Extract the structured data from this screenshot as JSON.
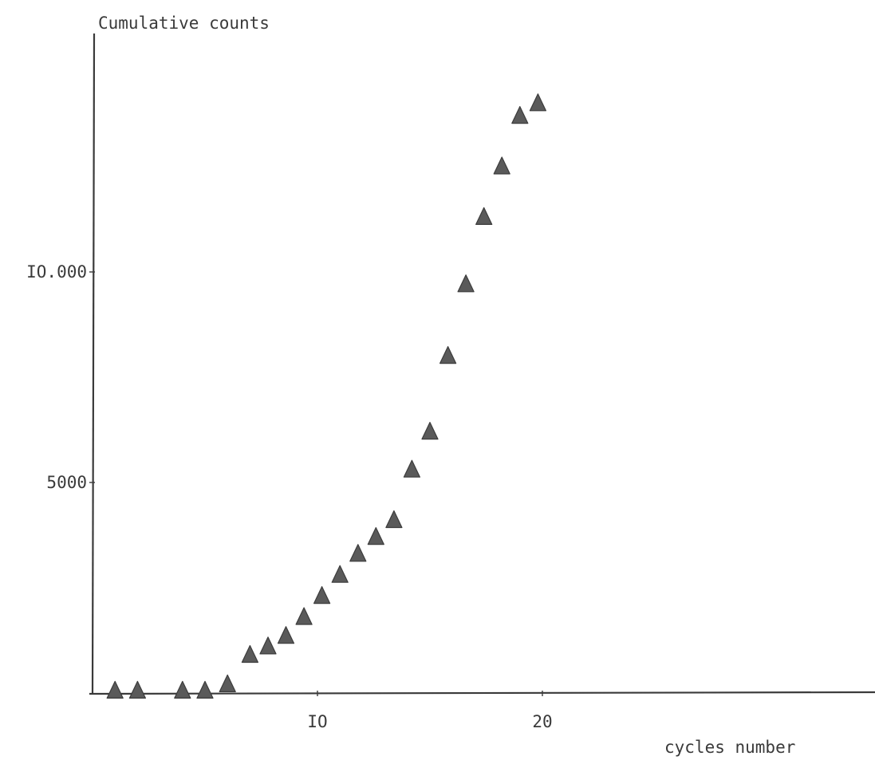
{
  "chart_data": {
    "type": "scatter",
    "title": "",
    "ylabel": "Cumulative counts",
    "xlabel": "cycles number",
    "xlim": [
      0,
      30
    ],
    "ylim": [
      0,
      14500
    ],
    "x_ticks": [
      {
        "value": 10,
        "label": "IO"
      },
      {
        "value": 20,
        "label": "20"
      }
    ],
    "y_ticks": [
      {
        "value": 5000,
        "label": "5000"
      },
      {
        "value": 10000,
        "label": "IO.000"
      }
    ],
    "grid": false,
    "legend": "none",
    "marker": "triangle",
    "marker_color": "#5a5a5a",
    "series": [
      {
        "x": [
          1,
          2,
          4,
          5,
          6,
          7,
          7.8,
          8.6,
          9.4,
          10.2,
          11,
          11.8,
          12.6,
          13.4,
          14.2,
          15,
          15.8,
          16.6,
          17.4,
          18.2,
          19,
          19.8
        ],
        "y": [
          50,
          50,
          50,
          50,
          200,
          900,
          1100,
          1350,
          1800,
          2300,
          2800,
          3300,
          3700,
          4100,
          5300,
          6200,
          8000,
          9700,
          11300,
          12500,
          13700,
          14000
        ]
      }
    ]
  }
}
